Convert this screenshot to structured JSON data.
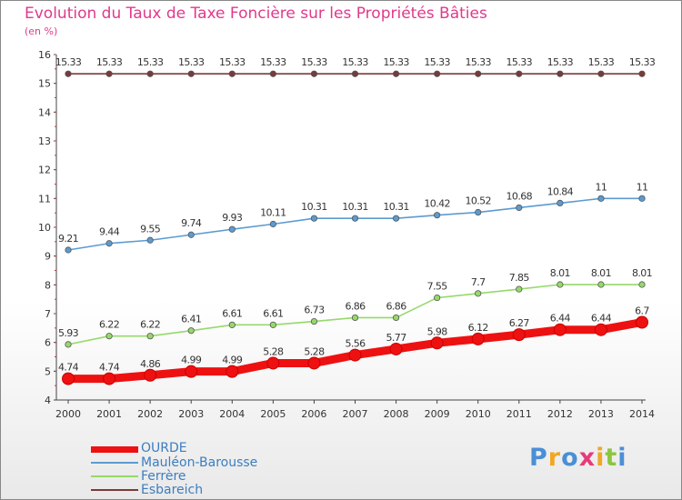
{
  "title": "Evolution du Taux de Taxe Foncière sur les Propriétés Bâties",
  "unit_label": "(en %)",
  "chart_data": {
    "type": "line",
    "title": "Evolution du Taux de Taxe Foncière sur les Propriétés Bâties",
    "ylabel": "(en %)",
    "xlabel": "",
    "x": [
      "2000",
      "2001",
      "2002",
      "2003",
      "2004",
      "2005",
      "2006",
      "2007",
      "2008",
      "2009",
      "2010",
      "2011",
      "2012",
      "2013",
      "2014"
    ],
    "ylim": [
      4,
      16
    ],
    "yticks": [
      "4",
      "5",
      "6",
      "7",
      "8",
      "9",
      "10",
      "11",
      "12",
      "13",
      "14",
      "15",
      "16"
    ],
    "series": [
      {
        "name": "OURDE",
        "color": "#ee1111",
        "values": [
          4.74,
          4.74,
          4.86,
          4.99,
          4.99,
          5.28,
          5.28,
          5.56,
          5.77,
          5.98,
          6.12,
          6.27,
          6.44,
          6.44,
          6.7
        ],
        "labels": [
          "4.74",
          "4.74",
          "4.86",
          "4.99",
          "4.99",
          "5.28",
          "5.28",
          "5.56",
          "5.77",
          "5.98",
          "6.12",
          "6.27",
          "6.44",
          "6.44",
          "6.7"
        ]
      },
      {
        "name": "Mauléon-Barousse",
        "color": "#5c9bd0",
        "values": [
          9.21,
          9.44,
          9.55,
          9.74,
          9.93,
          10.11,
          10.31,
          10.31,
          10.31,
          10.42,
          10.52,
          10.68,
          10.84,
          11,
          11
        ],
        "labels": [
          "9.21",
          "9.44",
          "9.55",
          "9.74",
          "9.93",
          "10.11",
          "10.31",
          "10.31",
          "10.31",
          "10.42",
          "10.52",
          "10.68",
          "10.84",
          "11",
          "11"
        ]
      },
      {
        "name": "Ferrère",
        "color": "#96d96a",
        "values": [
          5.93,
          6.22,
          6.22,
          6.41,
          6.61,
          6.61,
          6.73,
          6.86,
          6.86,
          7.55,
          7.7,
          7.85,
          8.01,
          8.01,
          8.01
        ],
        "labels": [
          "5.93",
          "6.22",
          "6.22",
          "6.41",
          "6.61",
          "6.61",
          "6.73",
          "6.86",
          "6.86",
          "7.55",
          "7.7",
          "7.85",
          "8.01",
          "8.01",
          "8.01"
        ]
      },
      {
        "name": "Esbareich",
        "color": "#7a3a3a",
        "values": [
          15.33,
          15.33,
          15.33,
          15.33,
          15.33,
          15.33,
          15.33,
          15.33,
          15.33,
          15.33,
          15.33,
          15.33,
          15.33,
          15.33,
          15.33
        ],
        "labels": [
          "15.33",
          "15.33",
          "15.33",
          "15.33",
          "15.33",
          "15.33",
          "15.33",
          "15.33",
          "15.33",
          "15.33",
          "15.33",
          "15.33",
          "15.33",
          "15.33",
          "15.33"
        ]
      }
    ],
    "legend": [
      "OURDE",
      "Mauléon-Barousse",
      "Ferrère",
      "Esbareich"
    ],
    "legend_position": "bottom-left"
  },
  "logo": {
    "letters": [
      "P",
      "r",
      "o",
      "x",
      "i",
      "t",
      "i"
    ],
    "colors": [
      "#4a8fd6",
      "#f2a623",
      "#4a8fd6",
      "#e63b7a",
      "#f2a623",
      "#8cc63f",
      "#4a8fd6"
    ]
  }
}
